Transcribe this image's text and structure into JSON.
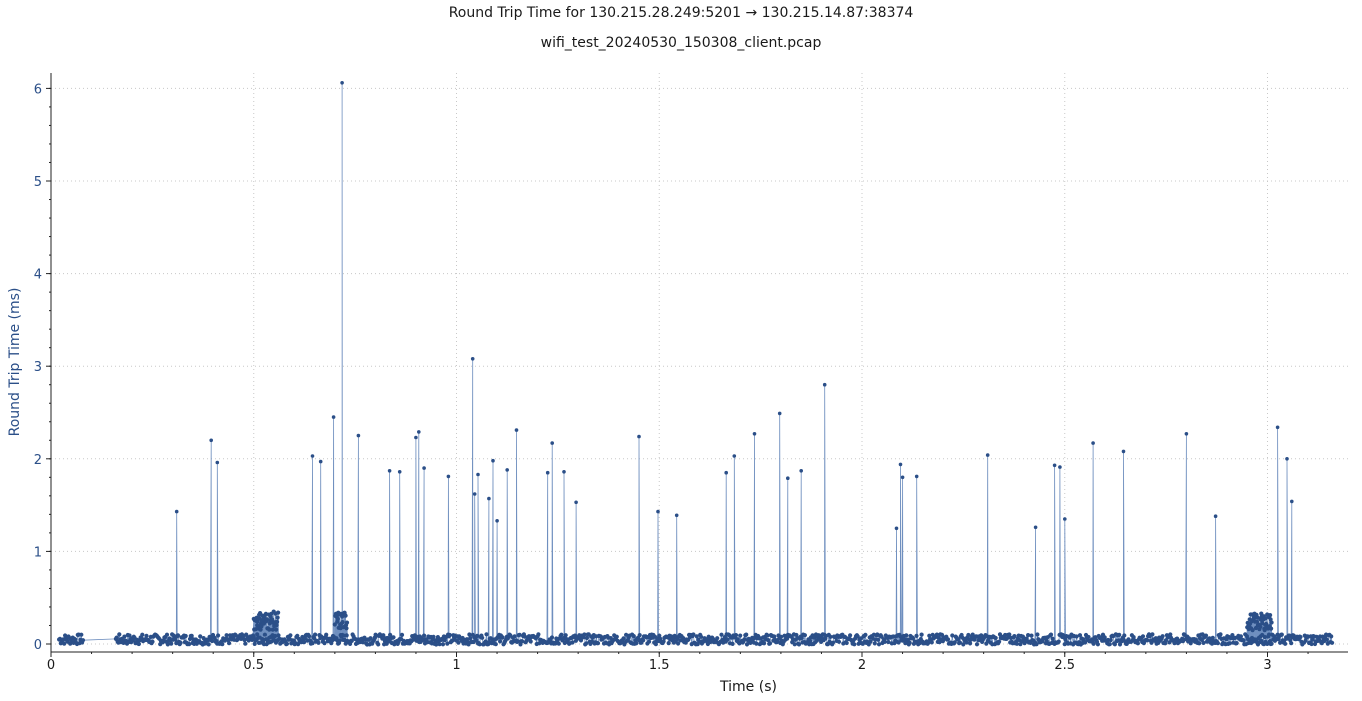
{
  "chart_data": {
    "type": "line",
    "title": "Round Trip Time for 130.215.28.249:5201 → 130.215.14.87:38374",
    "subtitle": "wifi_test_20240530_150308_client.pcap",
    "xlabel": "Time (s)",
    "ylabel": "Round Trip Time (ms)",
    "xlim": [
      0,
      3.18
    ],
    "ylim": [
      -0.1,
      6.15
    ],
    "x_ticks": [
      0,
      0.5,
      1,
      1.5,
      2,
      2.5,
      3
    ],
    "x_tick_labels": [
      "0",
      "0.5",
      "1",
      "1.5",
      "2",
      "2.5",
      "3"
    ],
    "y_ticks": [
      0,
      1,
      2,
      3,
      4,
      5,
      6
    ],
    "y_tick_labels": [
      "0",
      "1",
      "2",
      "3",
      "4",
      "5",
      "6"
    ],
    "grid": true,
    "colors": {
      "series": "#2b4f88",
      "line": "#6f8fbf",
      "axis_text": "#2b4f88",
      "grid": "#c8c8c8"
    },
    "baseline_ranges": [
      [
        0.02,
        0.08
      ],
      [
        0.16,
        0.95
      ],
      [
        0.95,
        3.16
      ]
    ],
    "baseline_level": 0.05,
    "clusters": [
      {
        "x_start": 0.5,
        "x_end": 0.56,
        "y_low": 0.15,
        "y_high": 0.35
      },
      {
        "x_start": 0.7,
        "x_end": 0.73,
        "y_low": 0.15,
        "y_high": 0.35
      },
      {
        "x_start": 2.95,
        "x_end": 3.01,
        "y_low": 0.15,
        "y_high": 0.33
      }
    ],
    "spikes": [
      {
        "x": 0.31,
        "y": 1.43
      },
      {
        "x": 0.395,
        "y": 2.2
      },
      {
        "x": 0.41,
        "y": 1.96
      },
      {
        "x": 0.645,
        "y": 2.03
      },
      {
        "x": 0.665,
        "y": 1.97
      },
      {
        "x": 0.697,
        "y": 2.45
      },
      {
        "x": 0.718,
        "y": 6.06
      },
      {
        "x": 0.758,
        "y": 2.25
      },
      {
        "x": 0.835,
        "y": 1.87
      },
      {
        "x": 0.86,
        "y": 1.86
      },
      {
        "x": 0.9,
        "y": 2.23
      },
      {
        "x": 0.907,
        "y": 2.29
      },
      {
        "x": 0.92,
        "y": 1.9
      },
      {
        "x": 0.98,
        "y": 1.81
      },
      {
        "x": 1.04,
        "y": 3.08
      },
      {
        "x": 1.045,
        "y": 1.62
      },
      {
        "x": 1.053,
        "y": 1.83
      },
      {
        "x": 1.08,
        "y": 1.57
      },
      {
        "x": 1.09,
        "y": 1.98
      },
      {
        "x": 1.1,
        "y": 1.33
      },
      {
        "x": 1.125,
        "y": 1.88
      },
      {
        "x": 1.148,
        "y": 2.31
      },
      {
        "x": 1.225,
        "y": 1.85
      },
      {
        "x": 1.236,
        "y": 2.17
      },
      {
        "x": 1.265,
        "y": 1.86
      },
      {
        "x": 1.295,
        "y": 1.53
      },
      {
        "x": 1.45,
        "y": 2.24
      },
      {
        "x": 1.497,
        "y": 1.43
      },
      {
        "x": 1.543,
        "y": 1.39
      },
      {
        "x": 1.665,
        "y": 1.85
      },
      {
        "x": 1.685,
        "y": 2.03
      },
      {
        "x": 1.735,
        "y": 2.27
      },
      {
        "x": 1.797,
        "y": 2.49
      },
      {
        "x": 1.817,
        "y": 1.79
      },
      {
        "x": 1.85,
        "y": 1.87
      },
      {
        "x": 1.908,
        "y": 2.8
      },
      {
        "x": 2.085,
        "y": 1.25
      },
      {
        "x": 2.095,
        "y": 1.94
      },
      {
        "x": 2.1,
        "y": 1.8
      },
      {
        "x": 2.135,
        "y": 1.81
      },
      {
        "x": 2.31,
        "y": 2.04
      },
      {
        "x": 2.428,
        "y": 1.26
      },
      {
        "x": 2.475,
        "y": 1.93
      },
      {
        "x": 2.488,
        "y": 1.91
      },
      {
        "x": 2.5,
        "y": 1.35
      },
      {
        "x": 2.57,
        "y": 2.17
      },
      {
        "x": 2.645,
        "y": 2.08
      },
      {
        "x": 2.8,
        "y": 2.27
      },
      {
        "x": 2.872,
        "y": 1.38
      },
      {
        "x": 3.025,
        "y": 2.34
      },
      {
        "x": 3.048,
        "y": 2.0
      },
      {
        "x": 3.06,
        "y": 1.54
      }
    ]
  }
}
